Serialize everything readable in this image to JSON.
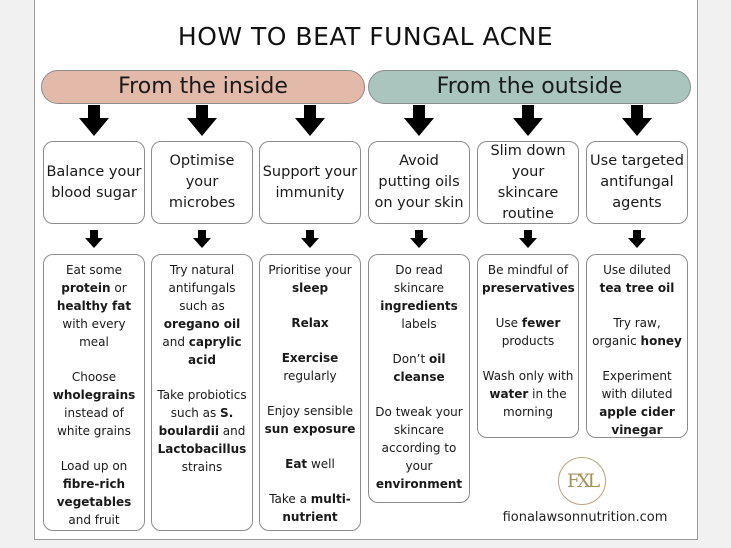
{
  "title": "HOW TO BEAT FUNGAL ACNE",
  "colors": {
    "inside": "#e3b9aa",
    "outside": "#a9c5be",
    "inside_box": "#f5ece9",
    "outside_box": "#edf2f2",
    "logo": "#b8a57a"
  },
  "sections": [
    {
      "label": "From the inside",
      "side": "inside"
    },
    {
      "label": "From the outside",
      "side": "outside"
    }
  ],
  "columns": [
    {
      "heading": "Balance your blood sugar",
      "side": "inside",
      "paragraphs": [
        [
          {
            "t": "Eat some "
          },
          {
            "t": "protein",
            "b": true
          },
          {
            "t": " or "
          },
          {
            "t": "healthy fat",
            "b": true
          },
          {
            "t": " with every meal"
          }
        ],
        [
          {
            "t": "Choose "
          },
          {
            "t": "wholegrains",
            "b": true
          },
          {
            "t": " instead of white grains"
          }
        ],
        [
          {
            "t": "Load up on "
          },
          {
            "t": "fibre-rich vegetables",
            "b": true
          },
          {
            "t": " and fruit"
          }
        ]
      ]
    },
    {
      "heading": "Optimise your microbes",
      "side": "inside",
      "paragraphs": [
        [
          {
            "t": "Try natural antifungals such as "
          },
          {
            "t": "oregano oil",
            "b": true
          },
          {
            "t": " and "
          },
          {
            "t": "caprylic acid",
            "b": true
          }
        ],
        [
          {
            "t": "Take probiotics such as "
          },
          {
            "t": "S. boulardii",
            "b": true
          },
          {
            "t": " and "
          },
          {
            "t": "Lactobacillus",
            "b": true
          },
          {
            "t": " strains"
          }
        ]
      ]
    },
    {
      "heading": "Support your immunity",
      "side": "inside",
      "paragraphs": [
        [
          {
            "t": "Prioritise your "
          },
          {
            "t": "sleep",
            "b": true
          }
        ],
        [
          {
            "t": "Relax",
            "b": true
          }
        ],
        [
          {
            "t": "Exercise",
            "b": true
          },
          {
            "t": " regularly"
          }
        ],
        [
          {
            "t": "Enjoy sensible "
          },
          {
            "t": "sun exposure",
            "b": true
          }
        ],
        [
          {
            "t": "Eat",
            "b": true
          },
          {
            "t": " well"
          }
        ],
        [
          {
            "t": "Take a "
          },
          {
            "t": "multi-nutrient",
            "b": true
          }
        ]
      ]
    },
    {
      "heading": "Avoid putting oils on your skin",
      "side": "outside",
      "paragraphs": [
        [
          {
            "t": "Do read skincare "
          },
          {
            "t": "ingredients",
            "b": true
          },
          {
            "t": " labels"
          }
        ],
        [
          {
            "t": "Don’t "
          },
          {
            "t": "oil cleanse",
            "b": true
          }
        ],
        [
          {
            "t": "Do tweak your skincare according to your "
          },
          {
            "t": "environment",
            "b": true
          }
        ]
      ]
    },
    {
      "heading": "Slim down your skincare routine",
      "side": "outside",
      "paragraphs": [
        [
          {
            "t": "Be mindful of "
          },
          {
            "t": "preservatives",
            "b": true
          }
        ],
        [
          {
            "t": "Use "
          },
          {
            "t": "fewer",
            "b": true
          },
          {
            "t": " products"
          }
        ],
        [
          {
            "t": "Wash only with "
          },
          {
            "t": "water",
            "b": true
          },
          {
            "t": " in the morning"
          }
        ]
      ]
    },
    {
      "heading": "Use targeted antifungal agents",
      "side": "outside",
      "paragraphs": [
        [
          {
            "t": "Use diluted "
          },
          {
            "t": "tea tree oil",
            "b": true
          }
        ],
        [
          {
            "t": "Try raw, organic "
          },
          {
            "t": "honey",
            "b": true
          }
        ],
        [
          {
            "t": "Experiment with diluted "
          },
          {
            "t": "apple cider vinegar",
            "b": true
          }
        ]
      ]
    }
  ],
  "logo": {
    "monogram": "FXL"
  },
  "website": "fionalawsonnutrition.com"
}
